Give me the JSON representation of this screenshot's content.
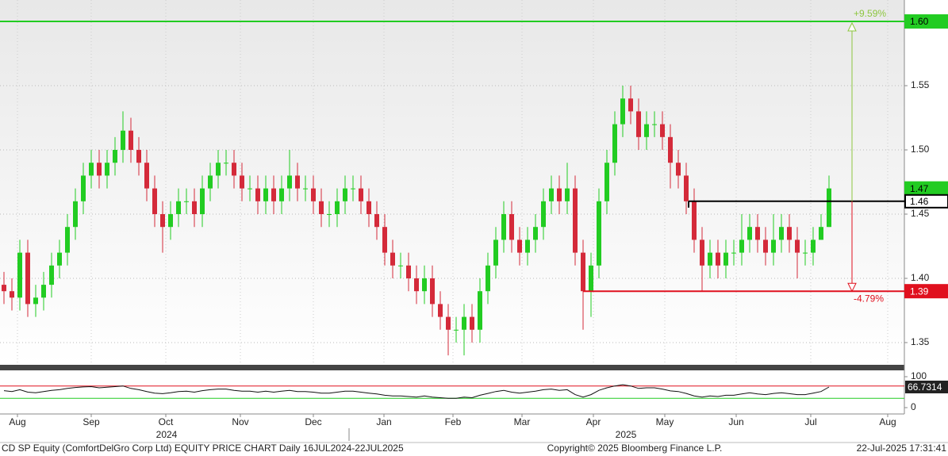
{
  "chart_data": {
    "type": "candlestick",
    "x": [
      0,
      1,
      2,
      3,
      4,
      5,
      6,
      7,
      8,
      9,
      10,
      11,
      12,
      13,
      14,
      15,
      16,
      17,
      18,
      19,
      20,
      21,
      22,
      23,
      24,
      25,
      26,
      27,
      28,
      29,
      30,
      31,
      32,
      33,
      34,
      35,
      36,
      37,
      38,
      39,
      40,
      41,
      42,
      43,
      44,
      45,
      46,
      47,
      48,
      49,
      50,
      51,
      52,
      53,
      54,
      55,
      56,
      57,
      58,
      59,
      60,
      61,
      62,
      63,
      64,
      65,
      66,
      67,
      68,
      69,
      70,
      71,
      72,
      73,
      74,
      75,
      76,
      77,
      78,
      79,
      80,
      81,
      82,
      83,
      84,
      85,
      86,
      87,
      88,
      89,
      90,
      91,
      92,
      93,
      94,
      95,
      96,
      97,
      98,
      99,
      100,
      101,
      102,
      103,
      104
    ],
    "open": [
      1.395,
      1.39,
      1.385,
      1.42,
      1.38,
      1.385,
      1.395,
      1.41,
      1.42,
      1.44,
      1.46,
      1.48,
      1.49,
      1.48,
      1.49,
      1.5,
      1.515,
      1.5,
      1.49,
      1.47,
      1.45,
      1.44,
      1.45,
      1.46,
      1.46,
      1.45,
      1.47,
      1.48,
      1.49,
      1.49,
      1.48,
      1.47,
      1.47,
      1.46,
      1.47,
      1.46,
      1.47,
      1.48,
      1.47,
      1.47,
      1.46,
      1.45,
      1.45,
      1.46,
      1.47,
      1.47,
      1.46,
      1.45,
      1.44,
      1.42,
      1.41,
      1.41,
      1.4,
      1.39,
      1.4,
      1.38,
      1.37,
      1.36,
      1.36,
      1.37,
      1.36,
      1.39,
      1.41,
      1.43,
      1.45,
      1.43,
      1.42,
      1.43,
      1.44,
      1.46,
      1.47,
      1.46,
      1.47,
      1.42,
      1.39,
      1.41,
      1.46,
      1.49,
      1.52,
      1.54,
      1.53,
      1.51,
      1.52,
      1.52,
      1.51,
      1.49,
      1.48,
      1.46,
      1.43,
      1.41,
      1.42,
      1.41,
      1.42,
      1.42,
      1.43,
      1.44,
      1.43,
      1.42,
      1.43,
      1.44,
      1.43,
      1.42,
      1.42,
      1.43,
      1.44
    ],
    "high": [
      1.405,
      1.4,
      1.43,
      1.43,
      1.395,
      1.405,
      1.42,
      1.43,
      1.45,
      1.47,
      1.49,
      1.5,
      1.5,
      1.5,
      1.51,
      1.53,
      1.525,
      1.51,
      1.5,
      1.48,
      1.46,
      1.46,
      1.47,
      1.47,
      1.47,
      1.48,
      1.49,
      1.5,
      1.5,
      1.5,
      1.49,
      1.48,
      1.48,
      1.48,
      1.48,
      1.48,
      1.5,
      1.49,
      1.48,
      1.48,
      1.47,
      1.46,
      1.47,
      1.48,
      1.48,
      1.48,
      1.47,
      1.46,
      1.45,
      1.43,
      1.42,
      1.42,
      1.41,
      1.41,
      1.41,
      1.39,
      1.38,
      1.37,
      1.38,
      1.38,
      1.4,
      1.42,
      1.44,
      1.46,
      1.46,
      1.44,
      1.44,
      1.45,
      1.47,
      1.48,
      1.48,
      1.49,
      1.48,
      1.43,
      1.42,
      1.47,
      1.5,
      1.53,
      1.55,
      1.55,
      1.54,
      1.53,
      1.53,
      1.53,
      1.52,
      1.5,
      1.49,
      1.47,
      1.44,
      1.43,
      1.43,
      1.43,
      1.43,
      1.45,
      1.45,
      1.45,
      1.44,
      1.45,
      1.45,
      1.45,
      1.44,
      1.43,
      1.44,
      1.45,
      1.48
    ],
    "low": [
      1.38,
      1.375,
      1.375,
      1.37,
      1.37,
      1.375,
      1.385,
      1.4,
      1.41,
      1.43,
      1.45,
      1.47,
      1.47,
      1.47,
      1.48,
      1.49,
      1.49,
      1.48,
      1.46,
      1.44,
      1.42,
      1.43,
      1.44,
      1.45,
      1.44,
      1.44,
      1.46,
      1.47,
      1.48,
      1.47,
      1.46,
      1.46,
      1.45,
      1.45,
      1.45,
      1.45,
      1.46,
      1.46,
      1.46,
      1.45,
      1.44,
      1.44,
      1.44,
      1.45,
      1.46,
      1.45,
      1.44,
      1.43,
      1.41,
      1.4,
      1.4,
      1.39,
      1.38,
      1.38,
      1.37,
      1.36,
      1.34,
      1.35,
      1.34,
      1.35,
      1.35,
      1.38,
      1.4,
      1.42,
      1.42,
      1.41,
      1.41,
      1.42,
      1.43,
      1.45,
      1.45,
      1.45,
      1.41,
      1.36,
      1.37,
      1.4,
      1.45,
      1.48,
      1.51,
      1.52,
      1.5,
      1.5,
      1.51,
      1.5,
      1.47,
      1.47,
      1.45,
      1.42,
      1.39,
      1.4,
      1.4,
      1.4,
      1.41,
      1.41,
      1.42,
      1.42,
      1.41,
      1.41,
      1.42,
      1.42,
      1.4,
      1.41,
      1.41,
      1.43,
      1.44
    ],
    "close": [
      1.39,
      1.385,
      1.42,
      1.38,
      1.385,
      1.395,
      1.41,
      1.42,
      1.44,
      1.46,
      1.48,
      1.49,
      1.48,
      1.49,
      1.5,
      1.515,
      1.5,
      1.49,
      1.47,
      1.45,
      1.44,
      1.45,
      1.46,
      1.46,
      1.45,
      1.47,
      1.48,
      1.49,
      1.49,
      1.48,
      1.47,
      1.47,
      1.46,
      1.47,
      1.46,
      1.47,
      1.48,
      1.47,
      1.47,
      1.46,
      1.45,
      1.45,
      1.46,
      1.47,
      1.47,
      1.46,
      1.45,
      1.44,
      1.42,
      1.41,
      1.41,
      1.4,
      1.39,
      1.4,
      1.38,
      1.37,
      1.36,
      1.36,
      1.37,
      1.36,
      1.39,
      1.41,
      1.43,
      1.45,
      1.43,
      1.42,
      1.43,
      1.44,
      1.46,
      1.47,
      1.46,
      1.47,
      1.42,
      1.39,
      1.41,
      1.46,
      1.49,
      1.52,
      1.54,
      1.53,
      1.51,
      1.52,
      1.52,
      1.51,
      1.49,
      1.48,
      1.46,
      1.43,
      1.41,
      1.42,
      1.41,
      1.42,
      1.42,
      1.43,
      1.44,
      1.43,
      1.42,
      1.43,
      1.44,
      1.43,
      1.42,
      1.42,
      1.43,
      1.44,
      1.47
    ],
    "up_color": "#22cc22",
    "down_color": "#d42a3a",
    "xlim": [
      -0.5,
      113.5
    ],
    "xticks": [
      {
        "value": 1.7,
        "label": "Aug"
      },
      {
        "value": 11,
        "label": "Sep"
      },
      {
        "value": 20.4,
        "label": "Oct"
      },
      {
        "value": 29.8,
        "label": "Nov"
      },
      {
        "value": 39,
        "label": "Dec"
      },
      {
        "value": 47.9,
        "label": "Jan"
      },
      {
        "value": 56.6,
        "label": "Feb"
      },
      {
        "value": 65.3,
        "label": "Mar"
      },
      {
        "value": 74.3,
        "label": "Apr"
      },
      {
        "value": 83.3,
        "label": "May"
      },
      {
        "value": 92.3,
        "label": "Jun"
      },
      {
        "value": 101.7,
        "label": "Jul"
      },
      {
        "value": 111.4,
        "label": "Aug"
      }
    ],
    "year_ticks": [
      {
        "value": 20.5,
        "label": "2024"
      },
      {
        "value": 78.4,
        "label": "2025"
      }
    ],
    "ylim": [
      1.3327,
      1.6167
    ],
    "yticks": [
      1.35,
      {
        "value": 1.4,
        "label": "1.40"
      },
      1.45,
      {
        "value": 1.5,
        "label": "1.50"
      },
      1.55
    ],
    "grid": true,
    "levels": [
      {
        "value": 1.6,
        "label": "1.60",
        "color": "#22cc22",
        "from": -0.5
      },
      {
        "value": 1.46,
        "label": "1.46",
        "color": "#000000",
        "from": 86.3
      },
      {
        "value": 1.39,
        "label": "1.39",
        "color": "#e0101e",
        "from": 73
      }
    ],
    "last_price": {
      "value": 1.47,
      "label": "1.47",
      "color": "#22cc22"
    },
    "arrow_x": 106.9,
    "change_up": {
      "value": 9.59,
      "label": "+9.59%",
      "color": "#8dc63f"
    },
    "change_down": {
      "value": -4.79,
      "label": "-4.79%",
      "color": "#e0101e"
    },
    "rsi": {
      "values": [
        55,
        52,
        58,
        50,
        48,
        52,
        56,
        58,
        62,
        65,
        67,
        68,
        64,
        66,
        68,
        70,
        62,
        58,
        52,
        47,
        45,
        48,
        52,
        53,
        50,
        55,
        58,
        60,
        60,
        56,
        53,
        53,
        50,
        53,
        50,
        53,
        56,
        52,
        52,
        50,
        47,
        47,
        50,
        53,
        53,
        50,
        47,
        44,
        40,
        38,
        38,
        36,
        34,
        38,
        34,
        32,
        30,
        30,
        34,
        32,
        40,
        46,
        52,
        56,
        50,
        47,
        50,
        53,
        58,
        60,
        56,
        58,
        42,
        34,
        42,
        56,
        64,
        70,
        74,
        70,
        62,
        64,
        64,
        60,
        54,
        52,
        46,
        38,
        34,
        38,
        36,
        40,
        40,
        44,
        48,
        44,
        42,
        46,
        48,
        45,
        42,
        42,
        47,
        52,
        66.7314
      ],
      "ylim": [
        0,
        100
      ],
      "yticks": [
        0,
        100
      ],
      "overbought": {
        "value": 70,
        "color": "#e0101e"
      },
      "oversold": {
        "value": 30,
        "color": "#22cc22"
      }
    },
    "footer_left": "CD SP Equity (ComfortDelGro Corp Ltd) EQUITY PRICE CHART  Daily 16JUL2024-22JUL2025",
    "footer_center": "Copyright© 2025 Bloomberg Finance L.P.",
    "footer_right": "22-Jul-2025 17:31:41"
  }
}
